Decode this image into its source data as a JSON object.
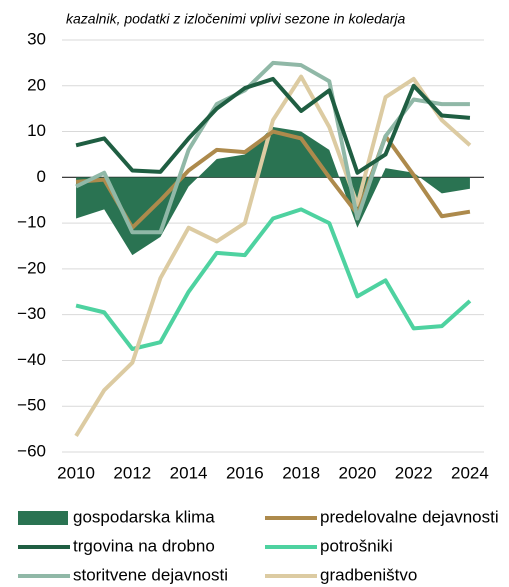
{
  "chart_data": {
    "type": "line",
    "subtitle": "kazalnik, podatki z izločenimi vplivi sezone in koledarja",
    "x": [
      2010,
      2011,
      2012,
      2013,
      2014,
      2015,
      2016,
      2017,
      2018,
      2019,
      2020,
      2021,
      2022,
      2023,
      2024
    ],
    "xlim": [
      2009.5,
      2024.5
    ],
    "xticks": [
      2010,
      2012,
      2014,
      2016,
      2018,
      2020,
      2022,
      2024
    ],
    "ylim": [
      -60,
      30
    ],
    "yticks": [
      {
        "value": -60,
        "label": "−60"
      },
      {
        "value": -50,
        "label": "−50"
      },
      {
        "value": -40,
        "label": "−40"
      },
      {
        "value": -30,
        "label": "−30"
      },
      {
        "value": -20,
        "label": "−20"
      },
      {
        "value": -10,
        "label": "−10"
      },
      0,
      10,
      20,
      30
    ],
    "grid": true,
    "series": [
      {
        "name": "gospodarska klima",
        "type": "area",
        "color": "#2a7352",
        "values": [
          -9,
          -7,
          -17,
          -13,
          -2,
          4,
          5,
          11,
          10,
          6,
          -11,
          2,
          1,
          -3.5,
          -2.5
        ]
      },
      {
        "name": "trgovina na drobno",
        "type": "line",
        "color": "#1f5e42",
        "values": [
          7,
          8.5,
          1.5,
          1.2,
          8.5,
          15,
          19.5,
          21.5,
          14.5,
          19,
          1,
          5,
          20,
          13.5,
          13
        ]
      },
      {
        "name": "storitvene dejavnosti",
        "type": "line",
        "color": "#90b8a7",
        "values": [
          -2,
          1,
          -12,
          -12,
          6,
          16,
          19,
          25,
          24.5,
          21,
          -9,
          9,
          17,
          16,
          16
        ]
      },
      {
        "name": "predelovalne dejavnosti",
        "type": "line",
        "color": "#ad8a4c",
        "values": [
          -1,
          -0.5,
          -11,
          -5,
          1.5,
          6,
          5.5,
          10,
          8.5,
          0,
          -8,
          9,
          0.5,
          -8.5,
          -7.5
        ]
      },
      {
        "name": "potrošniki",
        "type": "line",
        "color": "#4ed2a0",
        "values": [
          -28,
          -29.5,
          -37.5,
          -36,
          -25,
          -16.5,
          -17,
          -9,
          -7,
          -10,
          -26,
          -22.5,
          -33,
          -32.5,
          -27
        ]
      },
      {
        "name": "gradbeništvo",
        "type": "line",
        "color": "#dccba2",
        "values": [
          -56.5,
          -46.5,
          -40.5,
          -22,
          -11,
          -14,
          -10,
          12.5,
          22,
          11,
          -6,
          17.5,
          21.5,
          12.5,
          7
        ]
      }
    ]
  }
}
